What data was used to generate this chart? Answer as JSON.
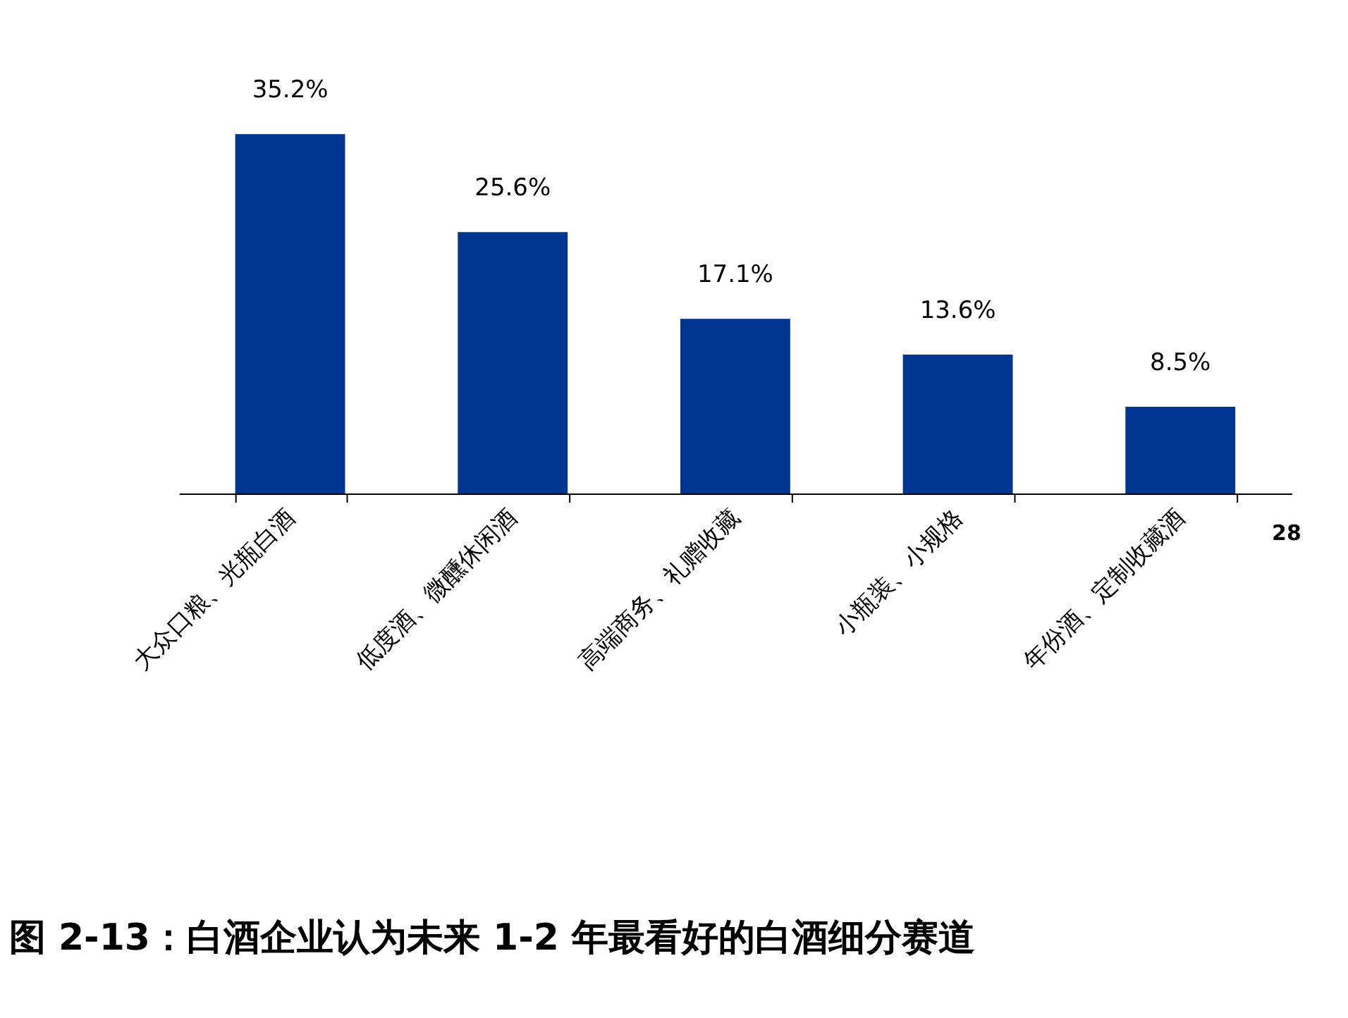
{
  "chart_data": {
    "type": "bar",
    "title": "图 2-13：白酒企业认为未来 1-2 年最看好的白酒细分赛道",
    "categories": [
      "大众口粮、光瓶白酒",
      "低度酒、微醺休闲酒",
      "高端商务、礼赠收藏",
      "小瓶装、小规格",
      "年份酒、定制收藏酒"
    ],
    "values": [
      35.2,
      25.6,
      17.1,
      13.6,
      8.5
    ],
    "value_labels": [
      "35.2%",
      "25.6%",
      "17.1%",
      "13.6%",
      "8.5%"
    ],
    "color": "#003591",
    "tick_labels": "x",
    "grid": false,
    "annotations": [
      "28"
    ]
  }
}
